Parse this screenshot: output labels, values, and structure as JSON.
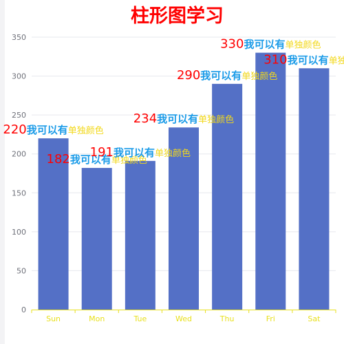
{
  "chart_data": {
    "type": "bar",
    "title": "柱形图学习",
    "categories": [
      "Sun",
      "Mon",
      "Tue",
      "Wed",
      "Thu",
      "Fri",
      "Sat"
    ],
    "values": [
      220,
      182,
      191,
      234,
      290,
      330,
      310
    ],
    "ylim": [
      0,
      350
    ],
    "yticks": [
      0,
      50,
      100,
      150,
      200,
      250,
      300,
      350
    ],
    "label_mid": "我可以有",
    "label_tail": "单独颜色",
    "grid": true,
    "colors": {
      "bar": "#5470c6",
      "value_label": "#ff0000",
      "mid_label": "#1a9be8",
      "tail_label": "#f2d81a",
      "x_axis": "#e8e01c",
      "grid": "#e6e8ee",
      "title": "#ff0000"
    }
  }
}
